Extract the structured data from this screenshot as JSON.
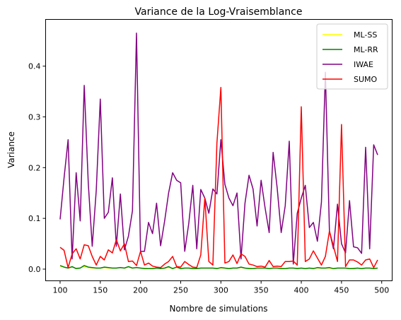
{
  "chart_data": {
    "type": "line",
    "title": "Variance de la Log-Vraisemblance",
    "xlabel": "Nombre de simulations",
    "ylabel": "Variance",
    "xlim": [
      82,
      513
    ],
    "ylim": [
      -0.023,
      0.492
    ],
    "xticks": [
      100,
      150,
      200,
      250,
      300,
      350,
      400,
      450,
      500
    ],
    "yticks": [
      0.0,
      0.1,
      0.2,
      0.3,
      0.4
    ],
    "ytick_labels": [
      "0.0",
      "0.1",
      "0.2",
      "0.3",
      "0.4"
    ],
    "grid": false,
    "legend_position": "top-right",
    "x": [
      100,
      105,
      110,
      115,
      120,
      125,
      130,
      135,
      140,
      145,
      150,
      155,
      160,
      165,
      170,
      175,
      180,
      185,
      190,
      195,
      200,
      205,
      210,
      215,
      220,
      225,
      230,
      235,
      240,
      245,
      250,
      255,
      260,
      265,
      270,
      275,
      280,
      285,
      290,
      295,
      300,
      305,
      310,
      315,
      320,
      325,
      330,
      335,
      340,
      345,
      350,
      355,
      360,
      365,
      370,
      375,
      380,
      385,
      390,
      395,
      400,
      405,
      410,
      415,
      420,
      425,
      430,
      435,
      440,
      445,
      450,
      455,
      460,
      465,
      470,
      475,
      480,
      485,
      490,
      495
    ],
    "series": [
      {
        "name": "ML-SS",
        "color": "#ffff00",
        "values": [
          0.006,
          0.004,
          0.002,
          0.004,
          0.002,
          0.003,
          0.005,
          0.003,
          0.002,
          0.002,
          0.002,
          0.003,
          0.002,
          0.002,
          0.002,
          0.003,
          0.002,
          0.004,
          0.002,
          0.003,
          0.002,
          0.002,
          0.001,
          0.002,
          0.002,
          0.002,
          0.002,
          0.003,
          0.002,
          0.003,
          0.002,
          0.002,
          0.002,
          0.002,
          0.002,
          0.002,
          0.002,
          0.002,
          0.002,
          0.002,
          0.002,
          0.002,
          0.001,
          0.002,
          0.002,
          0.003,
          0.002,
          0.002,
          0.001,
          0.002,
          0.002,
          0.002,
          0.001,
          0.002,
          0.002,
          0.002,
          0.001,
          0.002,
          0.002,
          0.002,
          0.002,
          0.001,
          0.002,
          0.002,
          0.002,
          0.002,
          0.002,
          0.002,
          0.001,
          0.002,
          0.002,
          0.002,
          0.001,
          0.002,
          0.002,
          0.001,
          0.002,
          0.002,
          0.001,
          0.002
        ]
      },
      {
        "name": "ML-RR",
        "color": "#008000",
        "values": [
          0.007,
          0.004,
          0.002,
          0.005,
          0.001,
          0.002,
          0.007,
          0.004,
          0.003,
          0.002,
          0.002,
          0.004,
          0.003,
          0.002,
          0.002,
          0.003,
          0.002,
          0.005,
          0.002,
          0.003,
          0.002,
          0.001,
          0.001,
          0.001,
          0.002,
          0.001,
          0.002,
          0.005,
          0.001,
          0.004,
          0.001,
          0.002,
          0.002,
          0.001,
          0.001,
          0.002,
          0.002,
          0.002,
          0.002,
          0.001,
          0.003,
          0.002,
          0.001,
          0.002,
          0.002,
          0.004,
          0.002,
          0.001,
          0.001,
          0.002,
          0.002,
          0.002,
          0.001,
          0.002,
          0.002,
          0.001,
          0.001,
          0.002,
          0.002,
          0.001,
          0.002,
          0.001,
          0.002,
          0.001,
          0.003,
          0.002,
          0.002,
          0.003,
          0.001,
          0.002,
          0.002,
          0.002,
          0.001,
          0.001,
          0.002,
          0.001,
          0.002,
          0.002,
          0.001,
          0.002
        ]
      },
      {
        "name": "IWAE",
        "color": "#800080",
        "values": [
          0.098,
          0.18,
          0.255,
          0.02,
          0.19,
          0.095,
          0.362,
          0.17,
          0.045,
          0.155,
          0.335,
          0.1,
          0.112,
          0.18,
          0.045,
          0.148,
          0.038,
          0.065,
          0.115,
          0.465,
          0.035,
          0.035,
          0.092,
          0.07,
          0.13,
          0.046,
          0.095,
          0.15,
          0.19,
          0.175,
          0.17,
          0.035,
          0.09,
          0.165,
          0.04,
          0.157,
          0.14,
          0.11,
          0.158,
          0.148,
          0.255,
          0.167,
          0.14,
          0.125,
          0.15,
          0.02,
          0.13,
          0.185,
          0.158,
          0.085,
          0.175,
          0.12,
          0.072,
          0.23,
          0.16,
          0.072,
          0.125,
          0.252,
          0.01,
          0.11,
          0.14,
          0.165,
          0.082,
          0.092,
          0.055,
          0.132,
          0.388,
          0.075,
          0.04,
          0.128,
          0.05,
          0.032,
          0.135,
          0.044,
          0.042,
          0.031,
          0.24,
          0.04,
          0.245,
          0.225
        ]
      },
      {
        "name": "SUMO",
        "color": "#ff0000",
        "values": [
          0.043,
          0.037,
          0.003,
          0.03,
          0.04,
          0.02,
          0.048,
          0.046,
          0.025,
          0.008,
          0.025,
          0.018,
          0.038,
          0.032,
          0.058,
          0.036,
          0.05,
          0.015,
          0.016,
          0.007,
          0.035,
          0.008,
          0.012,
          0.006,
          0.004,
          0.003,
          0.01,
          0.015,
          0.025,
          0.005,
          0.004,
          0.015,
          0.009,
          0.004,
          0.003,
          0.028,
          0.14,
          0.015,
          0.008,
          0.248,
          0.358,
          0.012,
          0.015,
          0.028,
          0.011,
          0.03,
          0.025,
          0.01,
          0.008,
          0.005,
          0.006,
          0.004,
          0.017,
          0.005,
          0.006,
          0.005,
          0.015,
          0.015,
          0.016,
          0.008,
          0.32,
          0.015,
          0.02,
          0.036,
          0.022,
          0.008,
          0.025,
          0.075,
          0.045,
          0.015,
          0.285,
          0.005,
          0.018,
          0.018,
          0.014,
          0.008,
          0.018,
          0.02,
          0.003,
          0.018
        ]
      }
    ]
  }
}
